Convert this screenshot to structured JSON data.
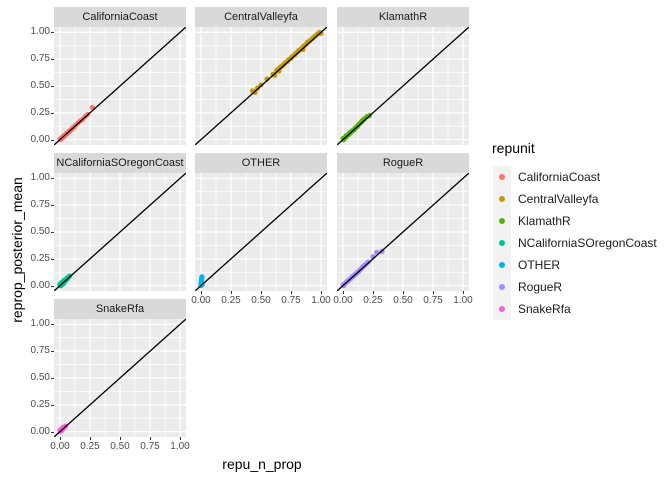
{
  "figure": {
    "x_axis_title": "repu_n_prop",
    "y_axis_title": "reprop_posterior_mean"
  },
  "legend": {
    "title": "repunit",
    "entries": [
      {
        "label": "CaliforniaCoast",
        "color": "#F8766D"
      },
      {
        "label": "CentralValleyfa",
        "color": "#C49A00"
      },
      {
        "label": "KlamathR",
        "color": "#53B400"
      },
      {
        "label": "NCaliforniaSOregonCoast",
        "color": "#00C094"
      },
      {
        "label": "OTHER",
        "color": "#00B6EB"
      },
      {
        "label": "RogueR",
        "color": "#A58AFF"
      },
      {
        "label": "SnakeRfa",
        "color": "#FB61D7"
      }
    ]
  },
  "chart_data": {
    "type": "scatter",
    "faceted_by": "repunit",
    "xlabel": "repu_n_prop",
    "ylabel": "reprop_posterior_mean",
    "x_ticks": [
      0.0,
      0.25,
      0.5,
      0.75,
      1.0
    ],
    "y_ticks": [
      0.0,
      0.25,
      0.5,
      0.75,
      1.0
    ],
    "x_tick_labels": [
      "0.00",
      "0.25",
      "0.50",
      "0.75",
      "1.00"
    ],
    "y_tick_labels": [
      "0.00",
      "0.25",
      "0.50",
      "0.75",
      "1.00"
    ],
    "xlim": [
      -0.05,
      1.05
    ],
    "ylim": [
      -0.05,
      1.05
    ],
    "minor_ticks": [
      0.125,
      0.375,
      0.625,
      0.875
    ],
    "grid": "on",
    "legend_position": "right",
    "panel_bg": "#EBEBEB",
    "strip_bg": "#D9D9D9",
    "grid_color": "#FFFFFF",
    "reference_line": {
      "slope": 1,
      "intercept": 0,
      "color": "#000000"
    },
    "facets": [
      {
        "name": "CaliforniaCoast",
        "color": "#F8766D",
        "row": 0,
        "col": 0,
        "points": [
          [
            0.0,
            0.005
          ],
          [
            0.005,
            0.0
          ],
          [
            0.01,
            0.01
          ],
          [
            0.015,
            0.02
          ],
          [
            0.02,
            0.015
          ],
          [
            0.025,
            0.03
          ],
          [
            0.03,
            0.025
          ],
          [
            0.035,
            0.04
          ],
          [
            0.04,
            0.035
          ],
          [
            0.05,
            0.05
          ],
          [
            0.055,
            0.06
          ],
          [
            0.06,
            0.055
          ],
          [
            0.07,
            0.07
          ],
          [
            0.075,
            0.08
          ],
          [
            0.08,
            0.075
          ],
          [
            0.09,
            0.09
          ],
          [
            0.1,
            0.1
          ],
          [
            0.105,
            0.11
          ],
          [
            0.11,
            0.105
          ],
          [
            0.12,
            0.12
          ],
          [
            0.13,
            0.135
          ],
          [
            0.15,
            0.155
          ],
          [
            0.17,
            0.175
          ],
          [
            0.19,
            0.19
          ],
          [
            0.21,
            0.215
          ],
          [
            0.23,
            0.235
          ],
          [
            0.27,
            0.3
          ]
        ]
      },
      {
        "name": "CentralValleyfa",
        "color": "#C49A00",
        "row": 0,
        "col": 1,
        "points": [
          [
            0.43,
            0.455
          ],
          [
            0.45,
            0.44
          ],
          [
            0.47,
            0.48
          ],
          [
            0.5,
            0.51
          ],
          [
            0.55,
            0.565
          ],
          [
            0.6,
            0.61
          ],
          [
            0.615,
            0.6
          ],
          [
            0.63,
            0.645
          ],
          [
            0.64,
            0.655
          ],
          [
            0.65,
            0.64
          ],
          [
            0.66,
            0.675
          ],
          [
            0.68,
            0.69
          ],
          [
            0.69,
            0.7
          ],
          [
            0.7,
            0.715
          ],
          [
            0.72,
            0.73
          ],
          [
            0.73,
            0.745
          ],
          [
            0.75,
            0.76
          ],
          [
            0.76,
            0.775
          ],
          [
            0.78,
            0.79
          ],
          [
            0.79,
            0.805
          ],
          [
            0.81,
            0.825
          ],
          [
            0.82,
            0.835
          ],
          [
            0.84,
            0.855
          ],
          [
            0.85,
            0.84
          ],
          [
            0.86,
            0.875
          ],
          [
            0.88,
            0.895
          ],
          [
            0.89,
            0.91
          ],
          [
            0.91,
            0.925
          ],
          [
            0.93,
            0.945
          ],
          [
            0.95,
            0.965
          ],
          [
            0.97,
            0.985
          ],
          [
            0.99,
            1.0
          ],
          [
            1.0,
            0.99
          ]
        ]
      },
      {
        "name": "KlamathR",
        "color": "#53B400",
        "row": 0,
        "col": 2,
        "points": [
          [
            0.0,
            0.01
          ],
          [
            0.005,
            0.0
          ],
          [
            0.01,
            0.015
          ],
          [
            0.02,
            0.02
          ],
          [
            0.025,
            0.035
          ],
          [
            0.03,
            0.03
          ],
          [
            0.04,
            0.045
          ],
          [
            0.05,
            0.05
          ],
          [
            0.055,
            0.065
          ],
          [
            0.06,
            0.06
          ],
          [
            0.07,
            0.075
          ],
          [
            0.08,
            0.085
          ],
          [
            0.09,
            0.09
          ],
          [
            0.1,
            0.105
          ],
          [
            0.11,
            0.115
          ],
          [
            0.12,
            0.125
          ],
          [
            0.13,
            0.14
          ],
          [
            0.14,
            0.15
          ],
          [
            0.15,
            0.16
          ],
          [
            0.16,
            0.175
          ],
          [
            0.17,
            0.185
          ],
          [
            0.18,
            0.195
          ],
          [
            0.2,
            0.215
          ],
          [
            0.22,
            0.225
          ]
        ]
      },
      {
        "name": "NCaliforniaSOregonCoast",
        "color": "#00C094",
        "row": 1,
        "col": 0,
        "points": [
          [
            0.0,
            0.0
          ],
          [
            0.0,
            0.015
          ],
          [
            0.005,
            0.01
          ],
          [
            0.01,
            0.0
          ],
          [
            0.01,
            0.02
          ],
          [
            0.015,
            0.03
          ],
          [
            0.02,
            0.015
          ],
          [
            0.02,
            0.035
          ],
          [
            0.025,
            0.025
          ],
          [
            0.03,
            0.04
          ],
          [
            0.03,
            0.02
          ],
          [
            0.035,
            0.05
          ],
          [
            0.04,
            0.04
          ],
          [
            0.045,
            0.055
          ],
          [
            0.05,
            0.05
          ],
          [
            0.055,
            0.065
          ],
          [
            0.06,
            0.06
          ],
          [
            0.065,
            0.075
          ],
          [
            0.07,
            0.08
          ],
          [
            0.08,
            0.09
          ]
        ]
      },
      {
        "name": "OTHER",
        "color": "#00B6EB",
        "row": 1,
        "col": 1,
        "points": [
          [
            0.0,
            0.0
          ],
          [
            0.0,
            0.012
          ],
          [
            0.002,
            0.025
          ],
          [
            0.003,
            0.038
          ],
          [
            0.004,
            0.05
          ],
          [
            0.005,
            0.06
          ],
          [
            0.006,
            0.072
          ],
          [
            0.008,
            0.082
          ],
          [
            0.01,
            0.01
          ]
        ]
      },
      {
        "name": "RogueR",
        "color": "#A58AFF",
        "row": 1,
        "col": 2,
        "points": [
          [
            0.0,
            0.005
          ],
          [
            0.005,
            0.0
          ],
          [
            0.01,
            0.015
          ],
          [
            0.02,
            0.02
          ],
          [
            0.03,
            0.035
          ],
          [
            0.04,
            0.04
          ],
          [
            0.05,
            0.055
          ],
          [
            0.06,
            0.06
          ],
          [
            0.07,
            0.075
          ],
          [
            0.08,
            0.085
          ],
          [
            0.09,
            0.09
          ],
          [
            0.1,
            0.105
          ],
          [
            0.11,
            0.11
          ],
          [
            0.12,
            0.125
          ],
          [
            0.13,
            0.13
          ],
          [
            0.14,
            0.145
          ],
          [
            0.15,
            0.155
          ],
          [
            0.16,
            0.17
          ],
          [
            0.17,
            0.18
          ],
          [
            0.18,
            0.19
          ],
          [
            0.19,
            0.2
          ],
          [
            0.21,
            0.22
          ],
          [
            0.25,
            0.27
          ],
          [
            0.28,
            0.31
          ],
          [
            0.325,
            0.32
          ]
        ]
      },
      {
        "name": "SnakeRfa",
        "color": "#FB61D7",
        "row": 2,
        "col": 0,
        "points": [
          [
            0.0,
            0.0
          ],
          [
            0.0,
            0.012
          ],
          [
            0.005,
            0.008
          ],
          [
            0.01,
            0.015
          ],
          [
            0.012,
            0.025
          ],
          [
            0.015,
            0.01
          ],
          [
            0.02,
            0.02
          ],
          [
            0.022,
            0.032
          ],
          [
            0.025,
            0.04
          ],
          [
            0.03,
            0.03
          ],
          [
            0.035,
            0.04
          ],
          [
            0.04,
            0.045
          ],
          [
            0.045,
            0.05
          ]
        ]
      }
    ]
  }
}
